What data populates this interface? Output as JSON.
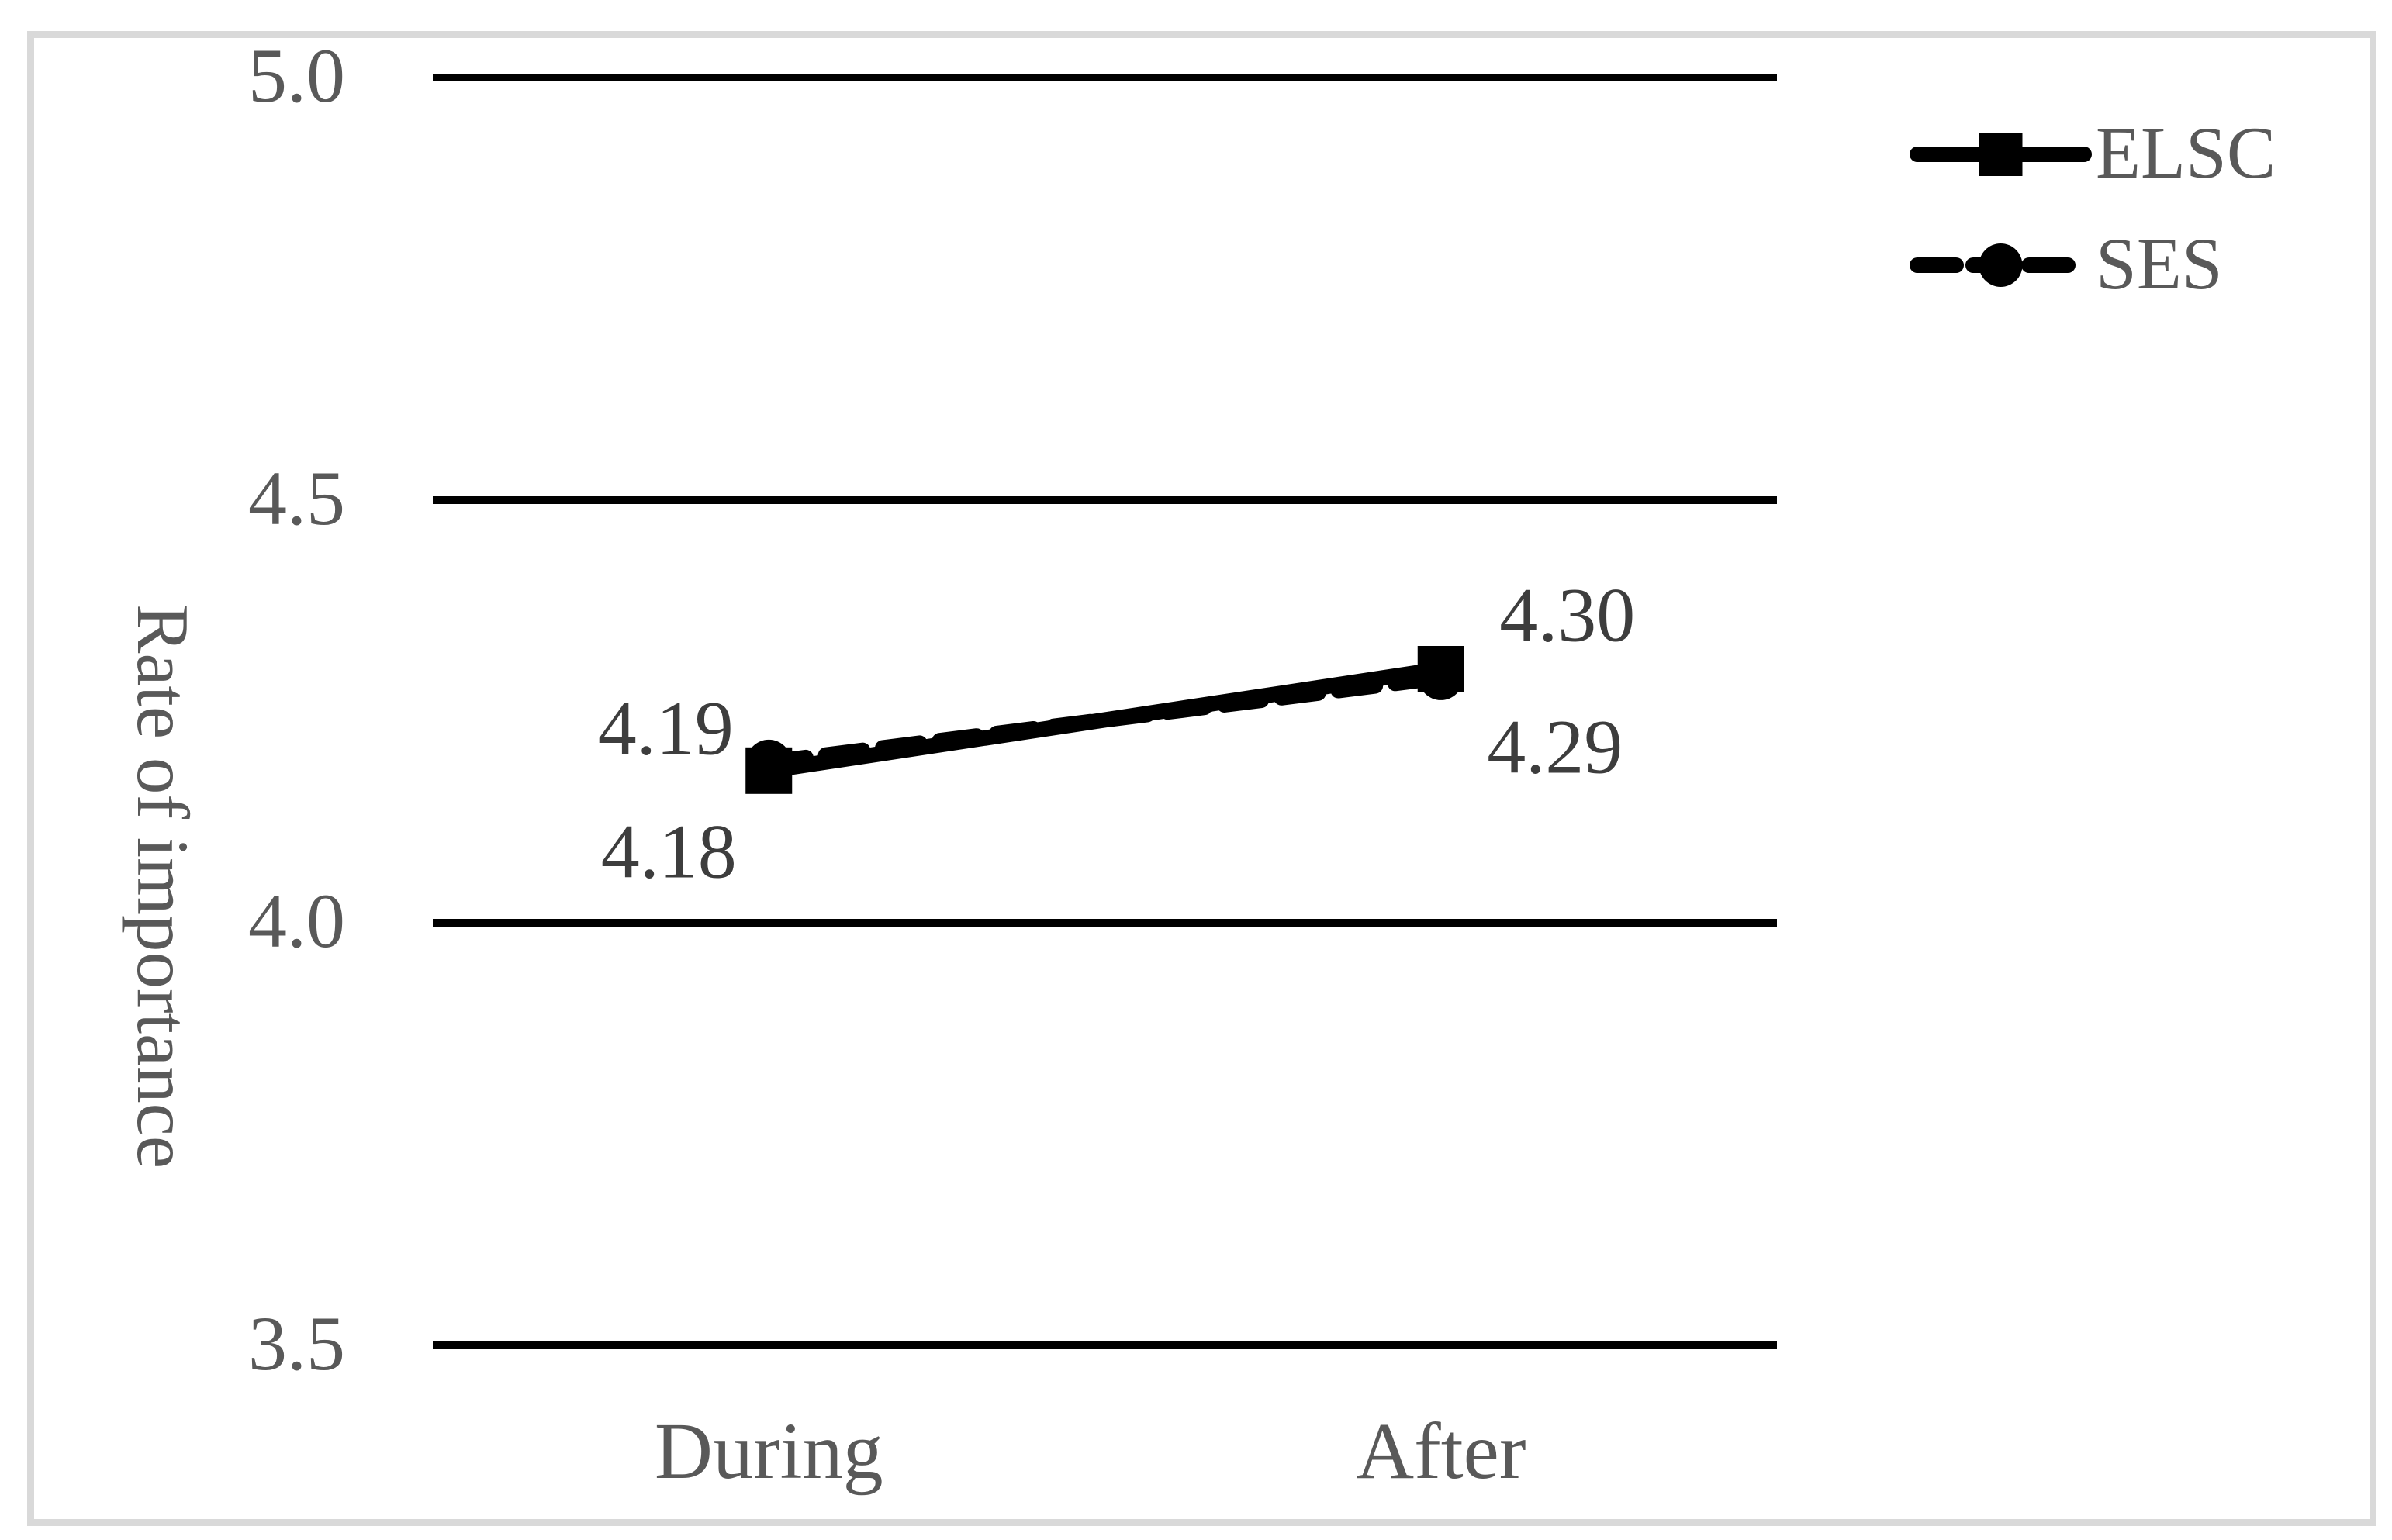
{
  "figure": {
    "background": "#ffffff",
    "border_color": "#d9d9d9"
  },
  "chart_data": {
    "type": "line",
    "title": "",
    "xlabel": "",
    "ylabel": "Rate of importance",
    "categories": [
      "During",
      "After"
    ],
    "ylim": [
      3.5,
      5.0
    ],
    "yticks": [
      5.0,
      4.5,
      4.0,
      3.5
    ],
    "ytick_labels": [
      "5.0",
      "4.5",
      "4.0",
      "3.5"
    ],
    "grid": "horizontal-only",
    "legend_position": "top-right",
    "series": [
      {
        "name": "ELSC",
        "values": [
          4.18,
          4.3
        ],
        "point_labels": [
          "4.18",
          "4.30"
        ],
        "line_style": "solid",
        "marker": "square",
        "color": "#000000",
        "label_offsets": [
          [
            -129,
            104
          ],
          [
            163,
            -70
          ]
        ]
      },
      {
        "name": "SES",
        "values": [
          4.19,
          4.29
        ],
        "point_labels": [
          "4.19",
          "4.29"
        ],
        "line_style": "dashed",
        "marker": "circle",
        "color": "#000000",
        "label_offsets": [
          [
            -133,
            -44
          ],
          [
            147,
            89
          ]
        ]
      }
    ],
    "colors": {
      "gridline": "#000000",
      "axis_text": "#595959",
      "data_label_text": "#3d3d3d",
      "series": "#000000"
    }
  }
}
